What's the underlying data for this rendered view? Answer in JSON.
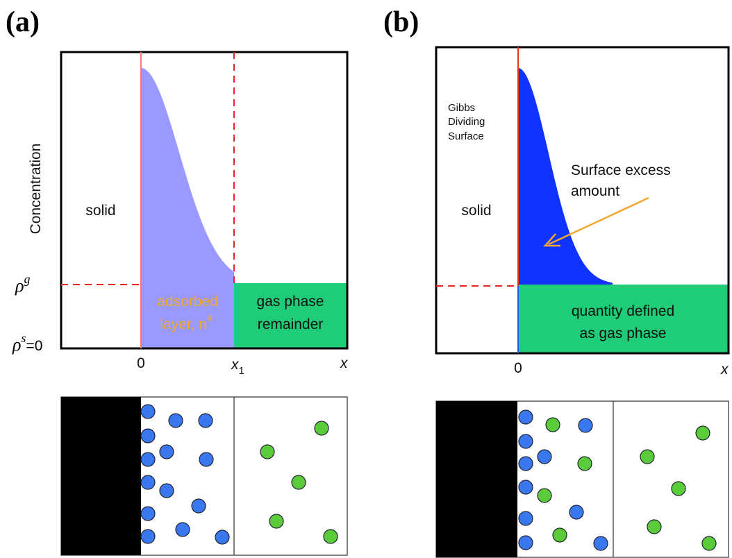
{
  "panel_a": {
    "label": "(a)",
    "y_axis_label": "Concentration",
    "region_label": "solid",
    "rho_g": {
      "symbol": "ρ",
      "superscript": "g"
    },
    "rho_s": {
      "symbol": "ρ",
      "superscript": "s",
      "suffix": "=0"
    },
    "adsorbed_layer": {
      "line1": "adsorbed",
      "line2": "layer, n",
      "superscript": "a"
    },
    "gas_phase": {
      "line1": "gas phase",
      "line2": "remainder"
    },
    "x_axis": {
      "origin": "0",
      "x1": {
        "symbol": "x",
        "subscript": "1"
      },
      "end": "x"
    }
  },
  "panel_b": {
    "label": "(b)",
    "surface_label": {
      "line1": "Gibbs",
      "line2": "Dividing",
      "line3": "Surface"
    },
    "excess_label": {
      "line1": "Surface excess",
      "line2": "amount"
    },
    "region_label": "solid",
    "gas_phase": {
      "line1": "quantity defined",
      "line2": "as gas phase"
    },
    "x_axis": {
      "origin": "0",
      "end": "x"
    }
  }
}
